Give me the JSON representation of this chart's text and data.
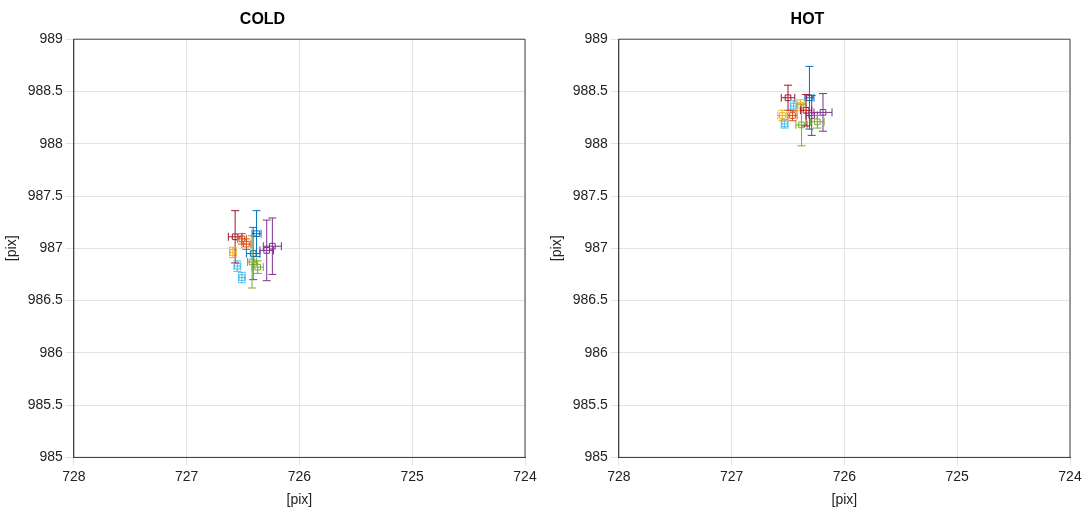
{
  "chart_data": [
    {
      "type": "scatter",
      "title": "COLD",
      "xlabel": "[pix]",
      "ylabel": "[pix]",
      "marker": "square",
      "grid": true,
      "xlim": [
        728,
        724
      ],
      "xticks": [
        728,
        727,
        726,
        725,
        724
      ],
      "ylim": [
        985,
        989
      ],
      "yticks": [
        985,
        985.5,
        986,
        986.5,
        987,
        987.5,
        988,
        988.5,
        989
      ],
      "x": [
        726.57,
        726.51,
        726.47,
        726.59,
        726.55,
        726.51,
        726.38,
        726.41,
        726.42,
        726.37,
        726.29,
        726.24
      ],
      "values": [
        987.11,
        987.09,
        987.04,
        986.96,
        986.83,
        986.72,
        987.14,
        986.95,
        986.87,
        986.82,
        986.98,
        987.02
      ],
      "errors": [
        0.25,
        0.05,
        0.05,
        0.05,
        0.05,
        0.05,
        0.22,
        0.25,
        0.25,
        0.06,
        0.29,
        0.27
      ],
      "xerrors": [
        0.06,
        0.04,
        0.04,
        0.03,
        0.03,
        0.03,
        0.04,
        0.06,
        0.04,
        0.05,
        0.06,
        0.08
      ],
      "colors": [
        "#a2142f",
        "#d95319",
        "#d95319",
        "#edb120",
        "#4dbeee",
        "#4dbeee",
        "#0072bd",
        "#0072bd",
        "#77ac30",
        "#77ac30",
        "#7e2f8e",
        "#7e2f8e"
      ]
    },
    {
      "type": "scatter",
      "title": "HOT",
      "xlabel": "[pix]",
      "ylabel": "[pix]",
      "marker": "square",
      "grid": true,
      "xlim": [
        728,
        724
      ],
      "xticks": [
        728,
        727,
        726,
        725,
        724
      ],
      "ylim": [
        985,
        989
      ],
      "yticks": [
        985,
        985.5,
        986,
        986.5,
        987,
        987.5,
        988,
        988.5,
        989
      ],
      "x": [
        726.5,
        726.31,
        726.45,
        726.39,
        726.55,
        726.46,
        726.53,
        726.38,
        726.29,
        726.19,
        726.24,
        726.34
      ],
      "values": [
        988.44,
        988.44,
        988.36,
        988.37,
        988.27,
        988.27,
        988.19,
        988.18,
        988.27,
        988.3,
        988.21,
        988.32
      ],
      "errors": [
        0.12,
        0.3,
        0.05,
        0.05,
        0.05,
        0.05,
        0.04,
        0.2,
        0.19,
        0.18,
        0.06,
        0.15
      ],
      "xerrors": [
        0.06,
        0.04,
        0.03,
        0.04,
        0.04,
        0.04,
        0.03,
        0.05,
        0.05,
        0.08,
        0.06,
        0.05
      ],
      "colors": [
        "#a2142f",
        "#0072bd",
        "#4dbeee",
        "#edb120",
        "#edb120",
        "#d95319",
        "#4dbeee",
        "#77ac30",
        "#7e2f8e",
        "#7e2f8e",
        "#77ac30",
        "#a2142f"
      ]
    }
  ]
}
